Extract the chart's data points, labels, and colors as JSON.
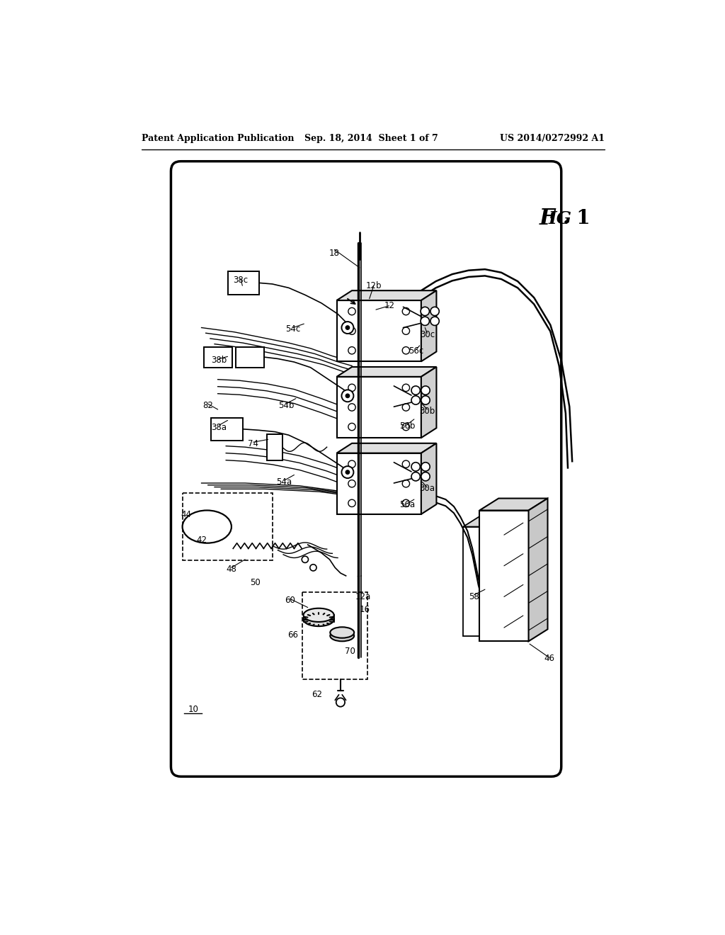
{
  "bg_color": "#ffffff",
  "line_color": "#000000",
  "header_left": "Patent Application Publication",
  "header_mid": "Sep. 18, 2014  Sheet 1 of 7",
  "header_right": "US 2014/0272992 A1",
  "fig_label_text": "FIG. 1"
}
